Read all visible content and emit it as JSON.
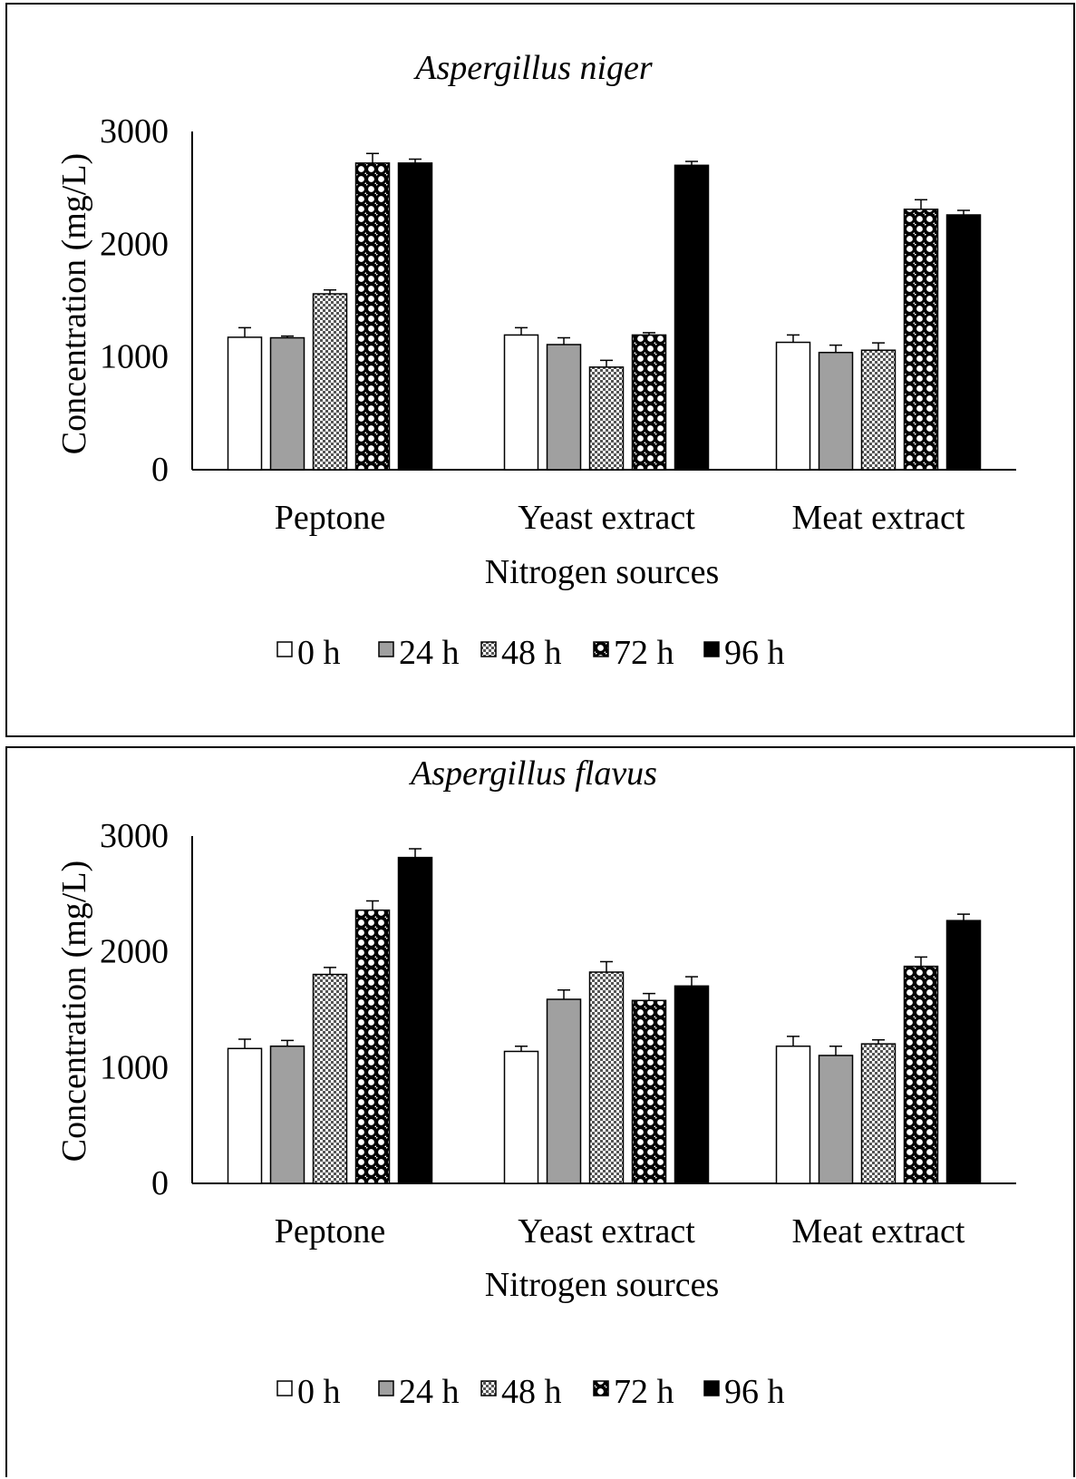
{
  "chart_data": [
    {
      "type": "bar",
      "title": "Aspergillus niger",
      "xlabel": "Nitrogen sources",
      "ylabel": "Concentration  (mg/L)",
      "ylim": [
        0,
        3000
      ],
      "yticks": [
        "0",
        "1000",
        "2000",
        "3000"
      ],
      "categories": [
        "Peptone",
        "Yeast extract",
        "Meat extract"
      ],
      "legend_position": "bottom",
      "series": [
        {
          "name": "0 h",
          "fill": "white",
          "values": [
            1175,
            1195,
            1130
          ],
          "errors": [
            85,
            65,
            65
          ]
        },
        {
          "name": "24 h",
          "fill": "gray",
          "values": [
            1170,
            1110,
            1040
          ],
          "errors": [
            15,
            60,
            65
          ]
        },
        {
          "name": "48 h",
          "fill": "checks",
          "values": [
            1560,
            910,
            1060
          ],
          "errors": [
            35,
            60,
            65
          ]
        },
        {
          "name": "72 h",
          "fill": "dots",
          "values": [
            2720,
            1195,
            2310
          ],
          "errors": [
            85,
            20,
            85
          ]
        },
        {
          "name": "96 h",
          "fill": "black",
          "values": [
            2720,
            2700,
            2260
          ],
          "errors": [
            35,
            35,
            40
          ]
        }
      ]
    },
    {
      "type": "bar",
      "title": "Aspergillus flavus",
      "xlabel": "Nitrogen sources",
      "ylabel": "Concentration  (mg/L)",
      "ylim": [
        0,
        3000
      ],
      "yticks": [
        "0",
        "1000",
        "2000",
        "3000"
      ],
      "categories": [
        "Peptone",
        "Yeast extract",
        "Meat extract"
      ],
      "legend_position": "bottom",
      "series": [
        {
          "name": "0 h",
          "fill": "white",
          "values": [
            1165,
            1140,
            1185
          ],
          "errors": [
            80,
            45,
            85
          ]
        },
        {
          "name": "24 h",
          "fill": "gray",
          "values": [
            1185,
            1590,
            1105
          ],
          "errors": [
            50,
            80,
            80
          ]
        },
        {
          "name": "48 h",
          "fill": "checks",
          "values": [
            1805,
            1825,
            1205
          ],
          "errors": [
            60,
            90,
            35
          ]
        },
        {
          "name": "72 h",
          "fill": "dots",
          "values": [
            2360,
            1580,
            1875
          ],
          "errors": [
            80,
            60,
            80
          ]
        },
        {
          "name": "96 h",
          "fill": "black",
          "values": [
            2815,
            1705,
            2270
          ],
          "errors": [
            75,
            80,
            55
          ]
        }
      ]
    }
  ],
  "colors": {
    "gray": "#a0a0a0",
    "black": "#000000",
    "white": "#ffffff"
  }
}
